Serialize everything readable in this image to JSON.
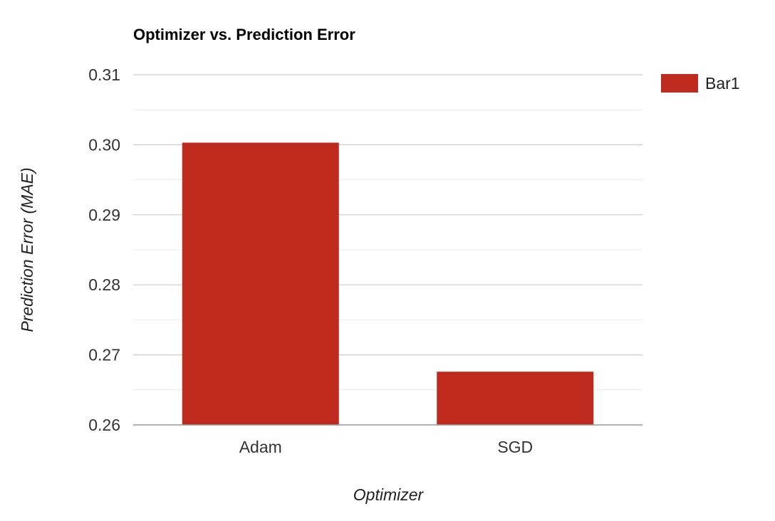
{
  "chart_data": {
    "type": "bar",
    "title": "Optimizer vs. Prediction Error",
    "xlabel": "Optimizer",
    "ylabel": "Prediction Error (MAE)",
    "categories": [
      "Adam",
      "SGD"
    ],
    "series": [
      {
        "name": "Bar1",
        "values": [
          0.3003,
          0.2676
        ],
        "color": "#be2a1e"
      }
    ],
    "ylim": [
      0.26,
      0.31
    ],
    "yticks": [
      "0.26",
      "0.27",
      "0.28",
      "0.29",
      "0.30",
      "0.31"
    ],
    "minor_gridlines": true,
    "grid": true,
    "legend_position": "right"
  }
}
